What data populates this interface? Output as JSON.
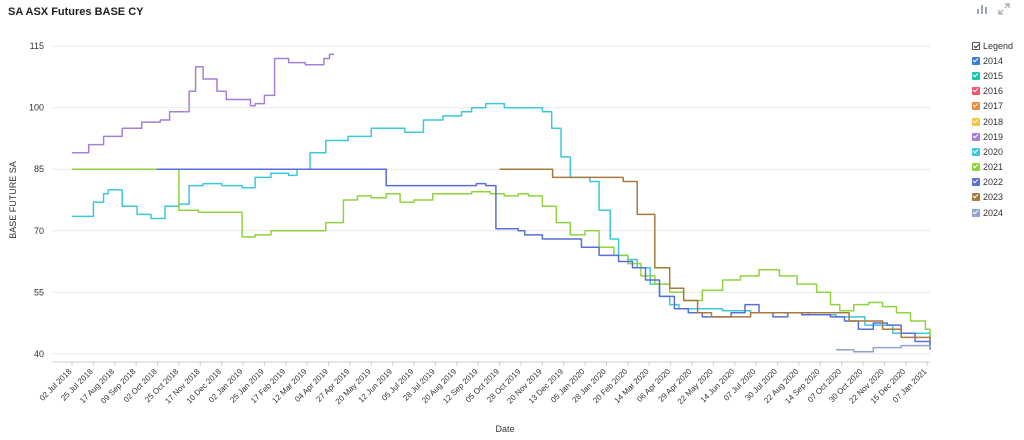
{
  "header": {
    "title": "SA ASX Futures BASE CY"
  },
  "toolbar": {
    "icons": [
      "bar-chart-icon",
      "expand-icon"
    ]
  },
  "legend": {
    "title": "Legend"
  },
  "chart_data": {
    "type": "line",
    "title": "SA ASX Futures BASE CY",
    "xlabel": "Date",
    "ylabel": "BASE FUTURE SA",
    "ylim": [
      38,
      117
    ],
    "yticks": [
      40,
      55,
      70,
      85,
      100,
      115
    ],
    "grid": true,
    "legend_position": "right",
    "x_start": "2018-07-02",
    "xticks": [
      "02 Jul 2018",
      "25 Jul 2018",
      "17 Aug 2018",
      "09 Sep 2018",
      "02 Oct 2018",
      "25 Oct 2018",
      "17 Nov 2018",
      "10 Dec 2018",
      "02 Jan 2019",
      "25 Jan 2019",
      "17 Feb 2019",
      "12 Mar 2019",
      "04 Apr 2019",
      "27 Apr 2019",
      "20 May 2019",
      "12 Jun 2019",
      "05 Jul 2019",
      "28 Jul 2019",
      "20 Aug 2019",
      "12 Sep 2019",
      "05 Oct 2019",
      "28 Oct 2019",
      "20 Nov 2019",
      "13 Dec 2019",
      "05 Jan 2020",
      "28 Jan 2020",
      "20 Feb 2020",
      "14 Mar 2020",
      "06 Apr 2020",
      "29 Apr 2020",
      "22 May 2020",
      "14 Jun 2020",
      "07 Jul 2020",
      "30 Jul 2020",
      "22 Aug 2020",
      "14 Sep 2020",
      "07 Oct 2020",
      "30 Oct 2020",
      "22 Nov 2020",
      "15 Dec 2020",
      "07 Jan 2021"
    ],
    "series": [
      {
        "name": "2014",
        "color": "#3b7dd8",
        "x": [],
        "y": []
      },
      {
        "name": "2015",
        "color": "#1fc8a8",
        "x": [],
        "y": []
      },
      {
        "name": "2016",
        "color": "#e8586a",
        "x": [],
        "y": []
      },
      {
        "name": "2017",
        "color": "#f08a3c",
        "x": [],
        "y": []
      },
      {
        "name": "2018",
        "color": "#f5c242",
        "x": [],
        "y": []
      },
      {
        "name": "2019",
        "color": "#a67fd6",
        "x": [
          "2018-07-02",
          "2018-07-20",
          "2018-08-05",
          "2018-08-25",
          "2018-09-15",
          "2018-10-05",
          "2018-10-15",
          "2018-10-20",
          "2018-11-05",
          "2018-11-12",
          "2018-11-20",
          "2018-12-05",
          "2018-12-15",
          "2019-01-10",
          "2019-01-15",
          "2019-01-25",
          "2019-02-05",
          "2019-02-20",
          "2019-03-10",
          "2019-03-30",
          "2019-04-05",
          "2019-04-10"
        ],
        "y": [
          89,
          91,
          93,
          95,
          96.5,
          97,
          99,
          99,
          104,
          110,
          107,
          104,
          102,
          100.5,
          101,
          103,
          112,
          111,
          110.5,
          112,
          113,
          113
        ]
      },
      {
        "name": "2020",
        "color": "#3ec8dc",
        "x": [
          "2018-07-02",
          "2018-07-15",
          "2018-07-25",
          "2018-08-05",
          "2018-08-10",
          "2018-08-25",
          "2018-09-10",
          "2018-09-25",
          "2018-10-10",
          "2018-10-25",
          "2018-11-05",
          "2018-11-20",
          "2018-12-10",
          "2019-01-01",
          "2019-01-15",
          "2019-02-01",
          "2019-02-20",
          "2019-03-01",
          "2019-03-15",
          "2019-04-01",
          "2019-04-25",
          "2019-05-20",
          "2019-06-10",
          "2019-06-25",
          "2019-07-15",
          "2019-08-05",
          "2019-08-25",
          "2019-09-05",
          "2019-09-20",
          "2019-10-10",
          "2019-11-10",
          "2019-11-20",
          "2019-11-30",
          "2019-12-10",
          "2019-12-20",
          "2020-01-01",
          "2020-01-10",
          "2020-01-20",
          "2020-02-01",
          "2020-02-10",
          "2020-02-20",
          "2020-03-01",
          "2020-03-15",
          "2020-03-25",
          "2020-04-05",
          "2020-04-15",
          "2020-05-01",
          "2020-06-01",
          "2020-07-01",
          "2020-08-01",
          "2020-09-01",
          "2020-10-01",
          "2020-11-01",
          "2020-12-01",
          "2021-01-10"
        ],
        "y": [
          73.5,
          73.5,
          77,
          79,
          80,
          76,
          74,
          73,
          76,
          76.5,
          81,
          81.5,
          81,
          80.5,
          83,
          84,
          83.5,
          85,
          89,
          92,
          93,
          95,
          95,
          94,
          97,
          98,
          99,
          100,
          101,
          100,
          100,
          99,
          95,
          88,
          83,
          83,
          82,
          75,
          68,
          64,
          63,
          61,
          57,
          54,
          52,
          51,
          51,
          50.5,
          50,
          50,
          49.5,
          49,
          47,
          45,
          42
        ]
      },
      {
        "name": "2021",
        "color": "#8fd43f",
        "x": [
          "2018-07-02",
          "2018-09-15",
          "2018-10-10",
          "2018-10-20",
          "2018-10-25",
          "2018-11-15",
          "2018-12-15",
          "2019-01-01",
          "2019-01-15",
          "2019-02-01",
          "2019-03-01",
          "2019-03-15",
          "2019-04-01",
          "2019-04-20",
          "2019-05-05",
          "2019-05-20",
          "2019-06-05",
          "2019-06-20",
          "2019-07-05",
          "2019-07-25",
          "2019-08-15",
          "2019-09-05",
          "2019-09-25",
          "2019-10-10",
          "2019-10-25",
          "2019-11-05",
          "2019-11-20",
          "2019-12-05",
          "2019-12-20",
          "2020-01-05",
          "2020-01-20",
          "2020-02-05",
          "2020-02-20",
          "2020-03-05",
          "2020-03-20",
          "2020-04-05",
          "2020-04-20",
          "2020-05-10",
          "2020-06-01",
          "2020-06-20",
          "2020-07-10",
          "2020-08-01",
          "2020-08-20",
          "2020-09-10",
          "2020-09-25",
          "2020-10-05",
          "2020-10-20",
          "2020-11-05",
          "2020-11-20",
          "2020-12-05",
          "2020-12-20",
          "2021-01-05",
          "2021-01-10"
        ],
        "y": [
          85,
          85,
          85,
          85,
          75,
          74.5,
          74.5,
          68.5,
          69,
          70,
          70,
          70,
          72,
          77.5,
          78.5,
          78,
          79,
          77,
          77.5,
          79,
          79,
          79.5,
          79,
          78.5,
          79,
          78.5,
          76,
          72,
          69,
          70,
          66,
          64,
          62,
          59,
          57,
          55,
          53,
          55.5,
          58,
          59,
          60.5,
          59,
          57,
          55,
          52,
          50.5,
          52,
          52.5,
          51.5,
          50,
          48,
          46,
          43
        ]
      },
      {
        "name": "2022",
        "color": "#5a6fd6",
        "x": [
          "2018-10-01",
          "2019-01-01",
          "2019-04-01",
          "2019-06-01",
          "2019-06-05",
          "2019-07-15",
          "2019-08-15",
          "2019-09-10",
          "2019-09-20",
          "2019-10-01",
          "2019-10-25",
          "2019-11-01",
          "2019-11-20",
          "2019-12-10",
          "2020-01-01",
          "2020-01-20",
          "2020-02-10",
          "2020-02-25",
          "2020-03-10",
          "2020-03-25",
          "2020-04-10",
          "2020-04-25",
          "2020-05-10",
          "2020-05-25",
          "2020-06-10",
          "2020-06-25",
          "2020-07-10",
          "2020-07-25",
          "2020-08-10",
          "2020-08-25",
          "2020-09-10",
          "2020-09-25",
          "2020-10-10",
          "2020-10-25",
          "2020-11-10",
          "2020-11-25",
          "2020-12-10",
          "2020-12-25",
          "2021-01-10"
        ],
        "y": [
          85,
          85,
          85,
          85,
          81,
          81,
          81,
          81.5,
          81,
          70.5,
          70,
          69,
          68,
          68,
          66,
          64,
          62.5,
          61,
          58,
          54,
          51,
          50,
          49,
          49,
          50,
          52,
          50,
          49,
          50,
          49.5,
          49.5,
          49,
          48,
          46,
          47.5,
          47,
          45,
          43,
          41
        ]
      },
      {
        "name": "2023",
        "color": "#a87a3d",
        "x": [
          "2019-10-05",
          "2019-11-01",
          "2019-12-01",
          "2020-01-01",
          "2020-01-15",
          "2020-02-15",
          "2020-03-01",
          "2020-03-05",
          "2020-03-20",
          "2020-04-05",
          "2020-04-20",
          "2020-05-05",
          "2020-05-20",
          "2020-06-10",
          "2020-07-01",
          "2020-08-01",
          "2020-09-01",
          "2020-10-01",
          "2020-10-15",
          "2020-11-01",
          "2020-11-20",
          "2020-12-10",
          "2020-12-25",
          "2021-01-10"
        ],
        "y": [
          85,
          85,
          83,
          83,
          83,
          82,
          74,
          74,
          61,
          56,
          53,
          50,
          49,
          49,
          50,
          50,
          50,
          50,
          48,
          48,
          46,
          44,
          44,
          43
        ]
      },
      {
        "name": "2024",
        "color": "#8ea4d2",
        "x": [
          "2020-10-01",
          "2020-10-20",
          "2020-11-10",
          "2020-11-25",
          "2020-12-10",
          "2020-12-25",
          "2021-01-10"
        ],
        "y": [
          41,
          40.5,
          41.5,
          41.5,
          42,
          42,
          41.5
        ]
      }
    ]
  }
}
